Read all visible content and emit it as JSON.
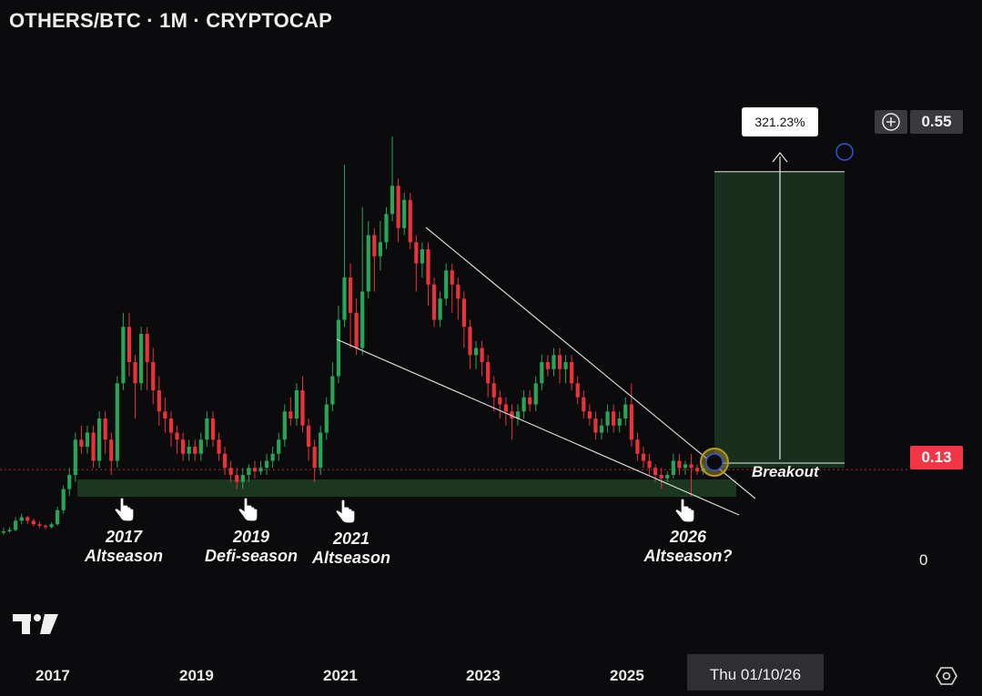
{
  "header": {
    "title": "OTHERS/BTC · 1M · CRYPTOCAP"
  },
  "price_axis": {
    "top_tag": "0.55",
    "current_tag": "0.13",
    "zero_label": "0"
  },
  "measure": {
    "percent": "321.23%"
  },
  "time_axis": {
    "years": [
      "2017",
      "2019",
      "2021",
      "2023",
      "2025"
    ],
    "cursor_date": "Thu 01/10/26"
  },
  "annotations": [
    {
      "year": "2017",
      "label": "Altseason"
    },
    {
      "year": "2019",
      "label": "Defi-season"
    },
    {
      "year": "2021",
      "label": "Altseason"
    },
    {
      "year": "2026",
      "label": "Altseason?"
    }
  ],
  "breakout_label": "Breakout",
  "colors": {
    "up": "#26a656",
    "down": "#e8333a",
    "background": "#0b0b0d",
    "zone": "#1d3a22",
    "current_tag": "#f23645"
  },
  "icons": {
    "logo": "tradingview-logo",
    "crosshair": "plus-circle-icon",
    "settings": "settings-hex-icon",
    "hand": "pointing-hand-icon"
  },
  "chart_data": {
    "type": "candlestick",
    "symbol": "OTHERS/BTC",
    "interval": "1M",
    "ylim": [
      0,
      0.6
    ],
    "levels": {
      "target": 0.55,
      "current": 0.13
    },
    "x_ticks": [
      "2017",
      "2019",
      "2021",
      "2023",
      "2025"
    ],
    "candles": [
      [
        0.04,
        0.04,
        0.045,
        0.035
      ],
      [
        0.04,
        0.042,
        0.046,
        0.038
      ],
      [
        0.042,
        0.055,
        0.06,
        0.04
      ],
      [
        0.055,
        0.06,
        0.065,
        0.05
      ],
      [
        0.06,
        0.055,
        0.062,
        0.05
      ],
      [
        0.055,
        0.05,
        0.058,
        0.047
      ],
      [
        0.05,
        0.048,
        0.054,
        0.045
      ],
      [
        0.048,
        0.046,
        0.05,
        0.043
      ],
      [
        0.046,
        0.05,
        0.053,
        0.044
      ],
      [
        0.05,
        0.07,
        0.075,
        0.048
      ],
      [
        0.07,
        0.1,
        0.105,
        0.065
      ],
      [
        0.1,
        0.12,
        0.13,
        0.09
      ],
      [
        0.12,
        0.17,
        0.18,
        0.11
      ],
      [
        0.17,
        0.16,
        0.19,
        0.15
      ],
      [
        0.16,
        0.18,
        0.19,
        0.15
      ],
      [
        0.18,
        0.14,
        0.19,
        0.13
      ],
      [
        0.14,
        0.2,
        0.21,
        0.13
      ],
      [
        0.2,
        0.17,
        0.21,
        0.15
      ],
      [
        0.17,
        0.14,
        0.18,
        0.12
      ],
      [
        0.14,
        0.25,
        0.26,
        0.13
      ],
      [
        0.25,
        0.33,
        0.35,
        0.24
      ],
      [
        0.33,
        0.28,
        0.35,
        0.26
      ],
      [
        0.28,
        0.25,
        0.29,
        0.2
      ],
      [
        0.25,
        0.32,
        0.33,
        0.24
      ],
      [
        0.32,
        0.28,
        0.33,
        0.24
      ],
      [
        0.28,
        0.24,
        0.3,
        0.22
      ],
      [
        0.24,
        0.21,
        0.26,
        0.19
      ],
      [
        0.21,
        0.2,
        0.23,
        0.18
      ],
      [
        0.2,
        0.18,
        0.21,
        0.16
      ],
      [
        0.18,
        0.17,
        0.19,
        0.15
      ],
      [
        0.17,
        0.15,
        0.18,
        0.14
      ],
      [
        0.15,
        0.16,
        0.17,
        0.14
      ],
      [
        0.16,
        0.15,
        0.17,
        0.14
      ],
      [
        0.15,
        0.17,
        0.18,
        0.14
      ],
      [
        0.17,
        0.2,
        0.21,
        0.16
      ],
      [
        0.2,
        0.17,
        0.21,
        0.16
      ],
      [
        0.17,
        0.15,
        0.18,
        0.14
      ],
      [
        0.15,
        0.13,
        0.16,
        0.12
      ],
      [
        0.13,
        0.12,
        0.14,
        0.11
      ],
      [
        0.12,
        0.11,
        0.13,
        0.1
      ],
      [
        0.11,
        0.12,
        0.13,
        0.1
      ],
      [
        0.12,
        0.13,
        0.135,
        0.11
      ],
      [
        0.13,
        0.125,
        0.14,
        0.115
      ],
      [
        0.125,
        0.13,
        0.14,
        0.12
      ],
      [
        0.13,
        0.14,
        0.15,
        0.12
      ],
      [
        0.14,
        0.15,
        0.16,
        0.13
      ],
      [
        0.15,
        0.17,
        0.18,
        0.14
      ],
      [
        0.17,
        0.21,
        0.22,
        0.16
      ],
      [
        0.21,
        0.2,
        0.23,
        0.19
      ],
      [
        0.2,
        0.24,
        0.25,
        0.19
      ],
      [
        0.24,
        0.19,
        0.26,
        0.18
      ],
      [
        0.19,
        0.16,
        0.2,
        0.14
      ],
      [
        0.16,
        0.13,
        0.17,
        0.11
      ],
      [
        0.13,
        0.18,
        0.19,
        0.12
      ],
      [
        0.18,
        0.22,
        0.23,
        0.17
      ],
      [
        0.22,
        0.26,
        0.28,
        0.21
      ],
      [
        0.26,
        0.34,
        0.36,
        0.25
      ],
      [
        0.34,
        0.4,
        0.56,
        0.33
      ],
      [
        0.4,
        0.35,
        0.42,
        0.3
      ],
      [
        0.35,
        0.3,
        0.37,
        0.29
      ],
      [
        0.3,
        0.38,
        0.5,
        0.29
      ],
      [
        0.38,
        0.46,
        0.48,
        0.37
      ],
      [
        0.46,
        0.43,
        0.47,
        0.38
      ],
      [
        0.43,
        0.45,
        0.48,
        0.41
      ],
      [
        0.45,
        0.49,
        0.5,
        0.44
      ],
      [
        0.49,
        0.53,
        0.6,
        0.48
      ],
      [
        0.53,
        0.47,
        0.54,
        0.45
      ],
      [
        0.47,
        0.51,
        0.52,
        0.46
      ],
      [
        0.51,
        0.45,
        0.52,
        0.44
      ],
      [
        0.45,
        0.42,
        0.46,
        0.38
      ],
      [
        0.42,
        0.44,
        0.45,
        0.4
      ],
      [
        0.44,
        0.39,
        0.45,
        0.36
      ],
      [
        0.39,
        0.34,
        0.4,
        0.33
      ],
      [
        0.34,
        0.37,
        0.38,
        0.33
      ],
      [
        0.37,
        0.41,
        0.42,
        0.36
      ],
      [
        0.41,
        0.39,
        0.42,
        0.35
      ],
      [
        0.39,
        0.37,
        0.4,
        0.34
      ],
      [
        0.37,
        0.33,
        0.38,
        0.3
      ],
      [
        0.33,
        0.29,
        0.34,
        0.27
      ],
      [
        0.29,
        0.3,
        0.31,
        0.27
      ],
      [
        0.3,
        0.28,
        0.31,
        0.26
      ],
      [
        0.28,
        0.25,
        0.29,
        0.23
      ],
      [
        0.25,
        0.23,
        0.26,
        0.21
      ],
      [
        0.23,
        0.22,
        0.24,
        0.2
      ],
      [
        0.22,
        0.21,
        0.23,
        0.19
      ],
      [
        0.21,
        0.2,
        0.22,
        0.17
      ],
      [
        0.2,
        0.21,
        0.22,
        0.19
      ],
      [
        0.21,
        0.23,
        0.24,
        0.2
      ],
      [
        0.23,
        0.22,
        0.24,
        0.21
      ],
      [
        0.22,
        0.25,
        0.26,
        0.21
      ],
      [
        0.25,
        0.28,
        0.29,
        0.24
      ],
      [
        0.28,
        0.27,
        0.29,
        0.26
      ],
      [
        0.27,
        0.29,
        0.3,
        0.26
      ],
      [
        0.29,
        0.27,
        0.3,
        0.25
      ],
      [
        0.27,
        0.28,
        0.29,
        0.25
      ],
      [
        0.28,
        0.25,
        0.29,
        0.24
      ],
      [
        0.25,
        0.23,
        0.26,
        0.22
      ],
      [
        0.23,
        0.21,
        0.24,
        0.2
      ],
      [
        0.21,
        0.2,
        0.22,
        0.19
      ],
      [
        0.2,
        0.18,
        0.21,
        0.17
      ],
      [
        0.18,
        0.19,
        0.2,
        0.17
      ],
      [
        0.19,
        0.21,
        0.22,
        0.18
      ],
      [
        0.21,
        0.19,
        0.22,
        0.18
      ],
      [
        0.19,
        0.2,
        0.21,
        0.18
      ],
      [
        0.2,
        0.22,
        0.23,
        0.19
      ],
      [
        0.22,
        0.17,
        0.25,
        0.16
      ],
      [
        0.17,
        0.15,
        0.18,
        0.14
      ],
      [
        0.15,
        0.14,
        0.16,
        0.13
      ],
      [
        0.14,
        0.13,
        0.15,
        0.12
      ],
      [
        0.13,
        0.12,
        0.135,
        0.11
      ],
      [
        0.12,
        0.115,
        0.13,
        0.1
      ],
      [
        0.115,
        0.12,
        0.125,
        0.11
      ],
      [
        0.12,
        0.14,
        0.15,
        0.115
      ],
      [
        0.14,
        0.13,
        0.15,
        0.12
      ],
      [
        0.13,
        0.135,
        0.14,
        0.12
      ],
      [
        0.135,
        0.13,
        0.15,
        0.09
      ],
      [
        0.13,
        0.125,
        0.135,
        0.12
      ],
      [
        0.125,
        0.13,
        0.135,
        0.12
      ]
    ]
  }
}
